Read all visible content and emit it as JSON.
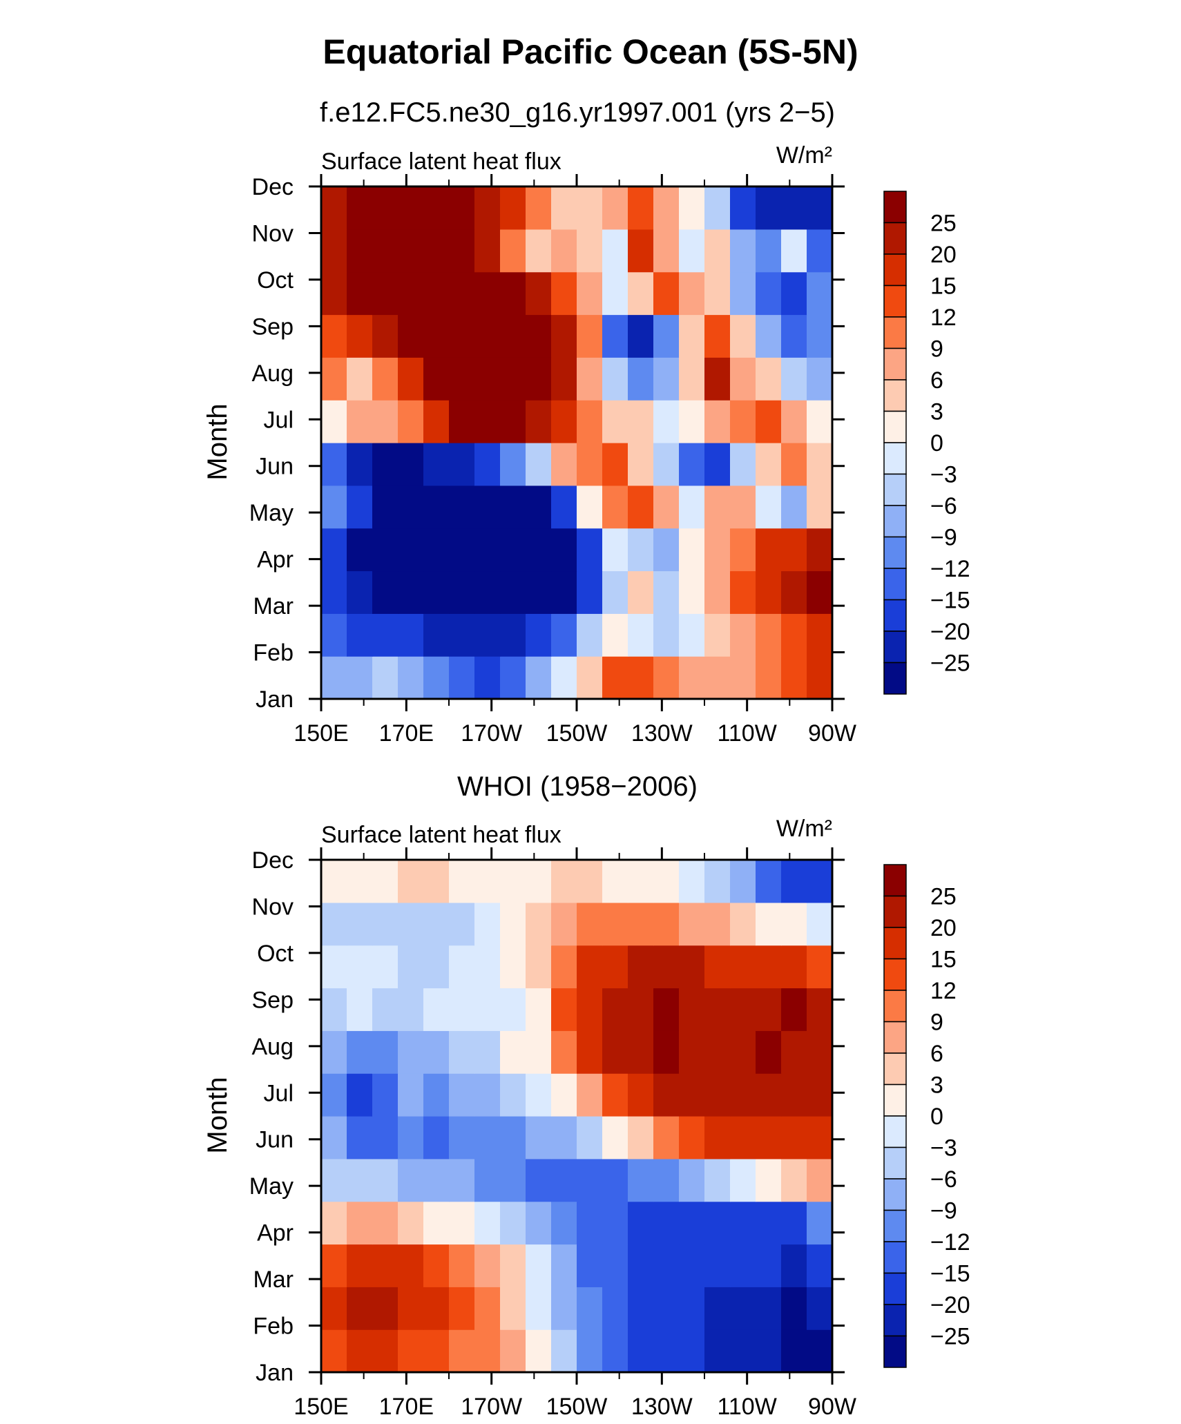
{
  "figure": {
    "title": "Equatorial Pacific Ocean (5S-5N)"
  },
  "colorbar": {
    "labels": [
      "25",
      "20",
      "15",
      "12",
      "9",
      "6",
      "3",
      "0",
      "−3",
      "−6",
      "−9",
      "−12",
      "−15",
      "−20",
      "−25"
    ],
    "colors": [
      "#8b0000",
      "#b01800",
      "#d62e00",
      "#f04a10",
      "#fb7a45",
      "#fca584",
      "#fdcbb2",
      "#fef0e6",
      "#dbeafe",
      "#b6cff9",
      "#8fb0f6",
      "#5e8af0",
      "#3a64ea",
      "#1a3ed8",
      "#0a23b0",
      "#020b86"
    ]
  },
  "chart_data": [
    {
      "type": "heatmap",
      "subtitle": "f.e12.FC5.ne30_g16.yr1997.001 (yrs 2−5)",
      "left_label": "Surface latent heat flux",
      "units": "W/m²",
      "ylabel": "Month",
      "xticks": [
        "150E",
        "170E",
        "170W",
        "150W",
        "130W",
        "110W",
        "90W"
      ],
      "yticks": [
        "Jan",
        "Feb",
        "Mar",
        "Apr",
        "May",
        "Jun",
        "Jul",
        "Aug",
        "Sep",
        "Oct",
        "Nov",
        "Dec"
      ],
      "xlim": [
        150,
        270
      ],
      "grid": [
        [
          -8,
          -7,
          -6,
          -9,
          -12,
          -15,
          -16,
          -13,
          -8,
          -2,
          4,
          12,
          14,
          10,
          8,
          7,
          6,
          9,
          14,
          16
        ],
        [
          -14,
          -16,
          -18,
          -20,
          -24,
          -25,
          -25,
          -23,
          -20,
          -14,
          -6,
          2,
          -3,
          -5,
          -2,
          4,
          7,
          9,
          14,
          18
        ],
        [
          -20,
          -23,
          -26,
          -27,
          -27,
          -27,
          -27,
          -27,
          -27,
          -26,
          -20,
          -4,
          3,
          -4,
          1,
          6,
          12,
          18,
          22,
          26
        ],
        [
          -18,
          -26,
          -27,
          -27,
          -27,
          -27,
          -27,
          -27,
          -27,
          -27,
          -18,
          -2,
          -6,
          -9,
          2,
          7,
          11,
          15,
          19,
          22
        ],
        [
          -12,
          -18,
          -27,
          -27,
          -27,
          -27,
          -27,
          -27,
          -26,
          -20,
          0,
          9,
          12,
          6,
          -3,
          8,
          6,
          -3,
          -9,
          4
        ],
        [
          -15,
          -22,
          -26,
          -26,
          -24,
          -21,
          -17,
          -10,
          -4,
          6,
          10,
          12,
          4,
          -6,
          -15,
          -20,
          -6,
          4,
          9,
          5
        ],
        [
          2,
          6,
          8,
          11,
          17,
          26,
          26,
          26,
          24,
          18,
          9,
          5,
          3,
          -2,
          2,
          6,
          9,
          12,
          7,
          2
        ],
        [
          9,
          4,
          10,
          16,
          26,
          27,
          27,
          27,
          26,
          21,
          7,
          -6,
          -12,
          -8,
          4,
          20,
          8,
          3,
          -4,
          -8
        ],
        [
          14,
          18,
          22,
          26,
          27,
          27,
          27,
          27,
          27,
          22,
          9,
          -14,
          -22,
          -10,
          5,
          12,
          4,
          -9,
          -15,
          -12
        ],
        [
          22,
          26,
          27,
          27,
          27,
          27,
          27,
          27,
          24,
          14,
          8,
          -1,
          5,
          14,
          7,
          3,
          -8,
          -13,
          -16,
          -12
        ],
        [
          24,
          27,
          27,
          27,
          27,
          26,
          20,
          10,
          5,
          8,
          4,
          -2,
          18,
          7,
          -2,
          5,
          -8,
          -12,
          -2,
          -14
        ],
        [
          22,
          26,
          27,
          27,
          27,
          26,
          24,
          18,
          10,
          3,
          5,
          8,
          12,
          6,
          2,
          -6,
          -18,
          -22,
          -24,
          -25
        ]
      ]
    },
    {
      "type": "heatmap",
      "subtitle": "WHOI (1958−2006)",
      "left_label": "Surface latent heat flux",
      "units": "W/m²",
      "ylabel": "Month",
      "xticks": [
        "150E",
        "170E",
        "170W",
        "150W",
        "130W",
        "110W",
        "90W"
      ],
      "yticks": [
        "Jan",
        "Feb",
        "Mar",
        "Apr",
        "May",
        "Jun",
        "Jul",
        "Aug",
        "Sep",
        "Oct",
        "Nov",
        "Dec"
      ],
      "xlim": [
        150,
        270
      ],
      "grid": [
        [
          12,
          17,
          16,
          14,
          13,
          11,
          9,
          6,
          0,
          -6,
          -10,
          -13,
          -16,
          -18,
          -20,
          -22,
          -24,
          -25,
          -26,
          -27
        ],
        [
          15,
          20,
          22,
          19,
          15,
          12,
          9,
          5,
          -2,
          -8,
          -12,
          -15,
          -17,
          -19,
          -20,
          -22,
          -24,
          -25,
          -26,
          -25
        ],
        [
          12,
          15,
          17,
          15,
          12,
          10,
          7,
          3,
          -3,
          -9,
          -13,
          -15,
          -16,
          -17,
          -18,
          -18,
          -20,
          -20,
          -21,
          -18
        ],
        [
          4,
          7,
          6,
          4,
          2,
          0,
          -2,
          -5,
          -9,
          -12,
          -14,
          -15,
          -16,
          -17,
          -17,
          -17,
          -18,
          -17,
          -16,
          -12
        ],
        [
          -4,
          -5,
          -6,
          -7,
          -8,
          -9,
          -10,
          -11,
          -13,
          -15,
          -15,
          -14,
          -12,
          -10,
          -8,
          -5,
          -2,
          2,
          5,
          7
        ],
        [
          -9,
          -14,
          -13,
          -12,
          -13,
          -12,
          -11,
          -10,
          -9,
          -7,
          -4,
          0,
          4,
          9,
          13,
          16,
          18,
          18,
          19,
          19
        ],
        [
          -10,
          -16,
          -13,
          -9,
          -12,
          -9,
          -7,
          -4,
          -1,
          2,
          8,
          14,
          18,
          21,
          22,
          24,
          24,
          23,
          22,
          21
        ],
        [
          -9,
          -10,
          -12,
          -7,
          -9,
          -6,
          -4,
          0,
          2,
          9,
          16,
          20,
          24,
          25,
          23,
          20,
          23,
          25,
          24,
          22
        ],
        [
          -5,
          -3,
          -6,
          -4,
          -3,
          -2,
          -3,
          -1,
          2,
          12,
          19,
          21,
          23,
          25,
          23,
          22,
          24,
          24,
          26,
          22
        ],
        [
          -3,
          -1,
          -2,
          -4,
          -4,
          -3,
          -2,
          1,
          4,
          10,
          17,
          18,
          20,
          22,
          20,
          18,
          17,
          16,
          15,
          14
        ],
        [
          -4,
          -4,
          -6,
          -6,
          -5,
          -4,
          -2,
          1,
          4,
          7,
          9,
          10,
          11,
          10,
          8,
          6,
          4,
          2,
          0,
          -2
        ],
        [
          1,
          1,
          2,
          3,
          3,
          2,
          1,
          0,
          2,
          3,
          3,
          2,
          2,
          0,
          -2,
          -5,
          -9,
          -13,
          -16,
          -18
        ]
      ]
    }
  ]
}
